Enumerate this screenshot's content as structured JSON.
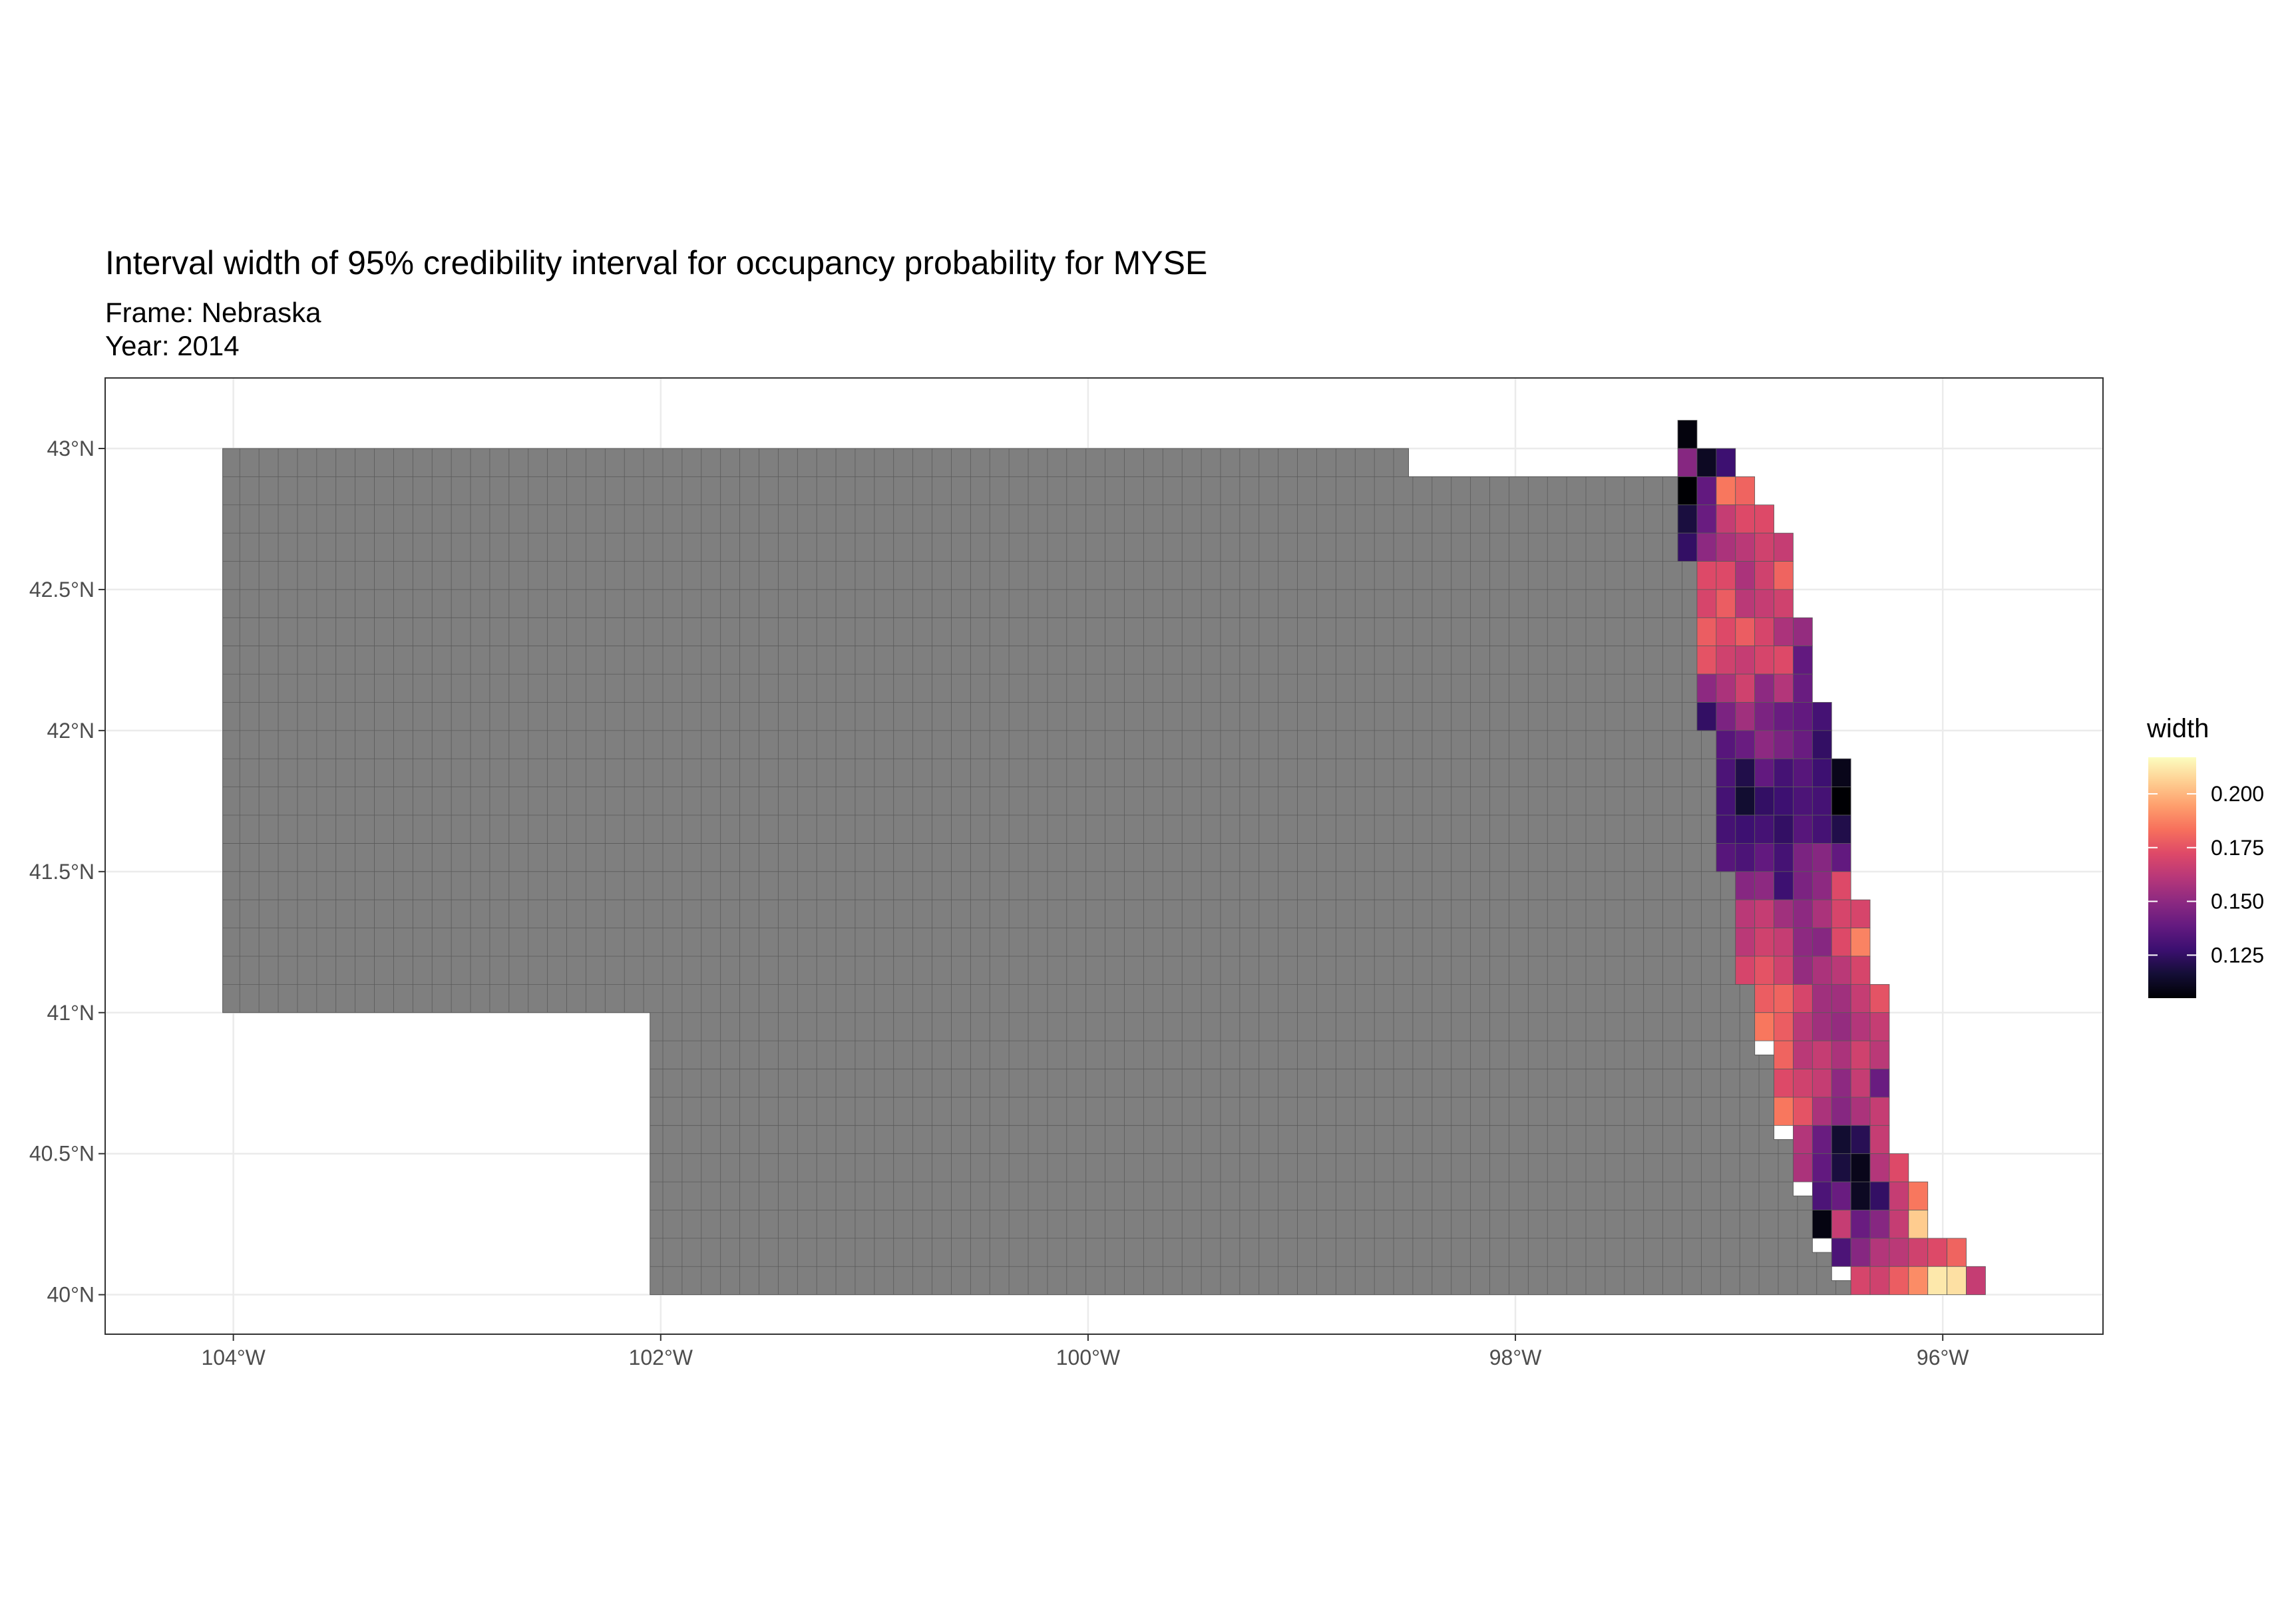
{
  "title": "Interval width of 95% credibility interval for occupancy probability for MYSE",
  "subtitle_frame": "Frame: Nebraska",
  "subtitle_year": "Year: 2014",
  "colors": {
    "panel_border": "#333333",
    "grid": "#ebebeb",
    "no_data_fill": "#7f7f7f",
    "cell_stroke": "#5a5a5a"
  },
  "chart_data": {
    "type": "heatmap",
    "xlabel": "",
    "ylabel": "",
    "xlim": [
      -104.6,
      -95.25
    ],
    "ylim": [
      39.86,
      43.25
    ],
    "x_ticks": [
      {
        "value": -104,
        "label": "104°W"
      },
      {
        "value": -102,
        "label": "102°W"
      },
      {
        "value": -100,
        "label": "100°W"
      },
      {
        "value": -98,
        "label": "98°W"
      },
      {
        "value": -96,
        "label": "96°W"
      }
    ],
    "y_ticks": [
      {
        "value": 40,
        "label": "40°N"
      },
      {
        "value": 40.5,
        "label": "40.5°N"
      },
      {
        "value": 41,
        "label": "41°N"
      },
      {
        "value": 41.5,
        "label": "41.5°N"
      },
      {
        "value": 42,
        "label": "42°N"
      },
      {
        "value": 42.5,
        "label": "42.5°N"
      },
      {
        "value": 43,
        "label": "43°N"
      }
    ],
    "grid": true,
    "legend": {
      "title": "width",
      "placement": "right",
      "min": 0.105,
      "max": 0.217,
      "ticks": [
        {
          "value": 0.125,
          "label": "0.125"
        },
        {
          "value": 0.15,
          "label": "0.150"
        },
        {
          "value": 0.175,
          "label": "0.175"
        },
        {
          "value": 0.2,
          "label": "0.200"
        }
      ],
      "palette": [
        "#000004",
        "#140e36",
        "#3b0f70",
        "#641a80",
        "#8c2981",
        "#b73779",
        "#de4968",
        "#f7705c",
        "#fe9f6d",
        "#fecf92",
        "#fcfdbf"
      ]
    },
    "colored_rows": [
      {
        "lat": 43.0,
        "lon_start": -97.24,
        "values": [
          0.107
        ]
      },
      {
        "lat": 42.9,
        "lon_start": -97.24,
        "values": [
          0.148,
          0.112,
          0.128
        ]
      },
      {
        "lat": 42.8,
        "lon_start": -97.24,
        "values": [
          0.105,
          0.138,
          0.185,
          0.18
        ]
      },
      {
        "lat": 42.7,
        "lon_start": -97.24,
        "values": [
          0.118,
          0.14,
          0.165,
          0.172,
          0.172
        ]
      },
      {
        "lat": 42.6,
        "lon_start": -97.24,
        "values": [
          0.125,
          0.15,
          0.158,
          0.162,
          0.168,
          0.165
        ]
      },
      {
        "lat": 42.5,
        "lon_start": -97.15,
        "values": [
          0.172,
          0.172,
          0.158,
          0.168,
          0.18
        ]
      },
      {
        "lat": 42.4,
        "lon_start": -97.15,
        "values": [
          0.17,
          0.178,
          0.162,
          0.165,
          0.168
        ]
      },
      {
        "lat": 42.3,
        "lon_start": -97.15,
        "values": [
          0.178,
          0.172,
          0.178,
          0.17,
          0.158,
          0.152
        ]
      },
      {
        "lat": 42.2,
        "lon_start": -97.15,
        "values": [
          0.175,
          0.168,
          0.165,
          0.17,
          0.172,
          0.138
        ]
      },
      {
        "lat": 42.1,
        "lon_start": -97.15,
        "values": [
          0.15,
          0.158,
          0.168,
          0.15,
          0.16,
          0.14
        ]
      },
      {
        "lat": 42.0,
        "lon_start": -97.15,
        "values": [
          0.125,
          0.145,
          0.155,
          0.145,
          0.14,
          0.138,
          0.13
        ]
      },
      {
        "lat": 41.9,
        "lon_start": -97.06,
        "values": [
          0.135,
          0.14,
          0.15,
          0.145,
          0.14,
          0.125
        ]
      },
      {
        "lat": 41.8,
        "lon_start": -97.06,
        "values": [
          0.132,
          0.12,
          0.138,
          0.13,
          0.135,
          0.128,
          0.11
        ]
      },
      {
        "lat": 41.7,
        "lon_start": -97.06,
        "values": [
          0.13,
          0.115,
          0.125,
          0.128,
          0.132,
          0.13,
          0.105
        ]
      },
      {
        "lat": 41.6,
        "lon_start": -97.06,
        "values": [
          0.13,
          0.128,
          0.13,
          0.125,
          0.135,
          0.13,
          0.12
        ]
      },
      {
        "lat": 41.5,
        "lon_start": -97.06,
        "values": [
          0.135,
          0.132,
          0.138,
          0.13,
          0.145,
          0.148,
          0.138
        ]
      },
      {
        "lat": 41.4,
        "lon_start": -96.97,
        "values": [
          0.148,
          0.15,
          0.128,
          0.145,
          0.15,
          0.172
        ]
      },
      {
        "lat": 41.3,
        "lon_start": -96.97,
        "values": [
          0.162,
          0.165,
          0.155,
          0.15,
          0.158,
          0.17,
          0.17
        ]
      },
      {
        "lat": 41.2,
        "lon_start": -96.97,
        "values": [
          0.162,
          0.168,
          0.165,
          0.15,
          0.148,
          0.172,
          0.188
        ]
      },
      {
        "lat": 41.1,
        "lon_start": -96.97,
        "values": [
          0.17,
          0.175,
          0.168,
          0.152,
          0.158,
          0.162,
          0.17
        ]
      },
      {
        "lat": 41.0,
        "lon_start": -96.88,
        "values": [
          0.178,
          0.18,
          0.17,
          0.155,
          0.155,
          0.165,
          0.175
        ]
      },
      {
        "lat": 40.9,
        "lon_start": -96.88,
        "values": [
          0.185,
          0.178,
          0.162,
          0.155,
          0.152,
          0.16,
          0.165
        ]
      },
      {
        "lat": 40.8,
        "lon_start": -96.79,
        "values": [
          0.18,
          0.162,
          0.165,
          0.158,
          0.168,
          0.162
        ]
      },
      {
        "lat": 40.7,
        "lon_start": -96.79,
        "values": [
          0.172,
          0.168,
          0.165,
          0.15,
          0.165,
          0.14
        ]
      },
      {
        "lat": 40.6,
        "lon_start": -96.79,
        "values": [
          0.185,
          0.175,
          0.158,
          0.148,
          0.158,
          0.165
        ]
      },
      {
        "lat": 40.5,
        "lon_start": -96.7,
        "values": [
          0.16,
          0.14,
          0.115,
          0.122,
          0.165
        ]
      },
      {
        "lat": 40.4,
        "lon_start": -96.7,
        "values": [
          0.158,
          0.138,
          0.118,
          0.11,
          0.16,
          0.172
        ]
      },
      {
        "lat": 40.3,
        "lon_start": -96.61,
        "values": [
          0.132,
          0.14,
          0.112,
          0.125,
          0.165,
          0.185
        ]
      },
      {
        "lat": 40.2,
        "lon_start": -96.61,
        "values": [
          0.108,
          0.165,
          0.14,
          0.148,
          0.165,
          0.205
        ]
      },
      {
        "lat": 40.1,
        "lon_start": -96.52,
        "values": [
          0.132,
          0.148,
          0.16,
          0.162,
          0.168,
          0.172,
          0.18
        ]
      },
      {
        "lat": 40.0,
        "lon_start": -96.43,
        "values": [
          0.17,
          0.168,
          0.178,
          0.19,
          0.212,
          0.21,
          0.165
        ]
      }
    ]
  }
}
